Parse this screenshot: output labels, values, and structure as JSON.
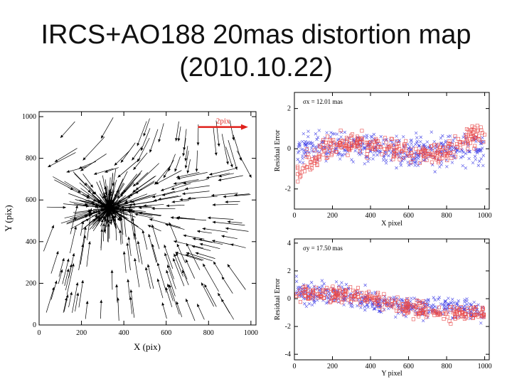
{
  "slide": {
    "title_line1": "IRCS+AO188 20mas distortion map",
    "title_line2": "(2010.10.22)"
  },
  "chart_data": [
    {
      "type": "quiver",
      "title": "",
      "xlabel": "X (pix)",
      "ylabel": "Y (pix)",
      "xlim": [
        0,
        1024
      ],
      "ylim": [
        0,
        1024
      ],
      "xticks": [
        0,
        200,
        400,
        600,
        800,
        1000
      ],
      "yticks": [
        0,
        200,
        400,
        600,
        800,
        1000
      ],
      "reference_vector": {
        "label": "2pix",
        "length_pix": 2,
        "color": "#e0201b"
      },
      "grid": false
    },
    {
      "type": "scatter",
      "annotation": "σx = 12.01 mas",
      "xlabel": "X pixel",
      "ylabel": "Residual Error",
      "xlim": [
        0,
        1024
      ],
      "ylim": [
        -3,
        2.8
      ],
      "xticks": [
        0,
        200,
        400,
        600,
        800,
        1000
      ],
      "yticks": [
        -2,
        0,
        2
      ],
      "series": [
        {
          "marker": "x",
          "color": "#4a4ae8"
        },
        {
          "marker": "square",
          "color": "#e84a4a"
        }
      ],
      "grid": false
    },
    {
      "type": "scatter",
      "annotation": "σy = 17.50 mas",
      "xlabel": "Y pixel",
      "ylabel": "Residual Error",
      "xlim": [
        0,
        1024
      ],
      "ylim": [
        -4.4,
        4.3
      ],
      "xticks": [
        0,
        200,
        400,
        600,
        800,
        1000
      ],
      "yticks": [
        -4,
        -2,
        0,
        2,
        4
      ],
      "series": [
        {
          "marker": "x",
          "color": "#4a4ae8"
        },
        {
          "marker": "square",
          "color": "#e84a4a"
        }
      ],
      "grid": false
    }
  ]
}
